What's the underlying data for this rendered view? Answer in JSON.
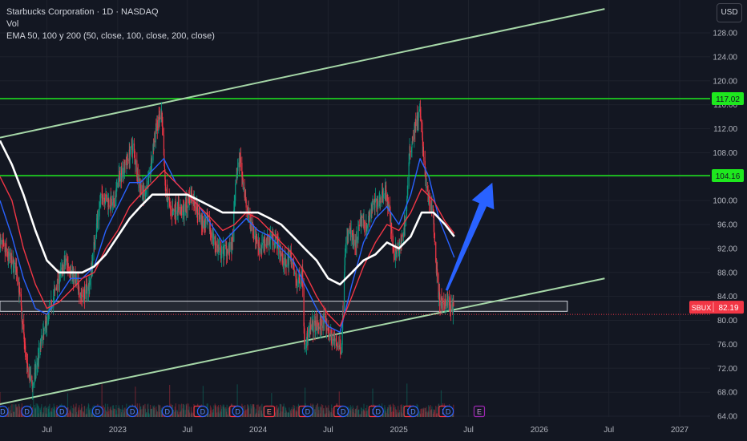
{
  "header": {
    "title": "Starbucks Corporation · 1D · NASDAQ",
    "vol_label": "Vol",
    "ema_label": "EMA 50, 100 y 200 (50, close, 100, close, 200, close)"
  },
  "currency_button": "USD",
  "chart_data": {
    "type": "candlestick",
    "symbol": "SBUX",
    "last_price": "82.19",
    "x_tick_labels": [
      "Jul",
      "2023",
      "Jul",
      "2024",
      "Jul",
      "2025",
      "Jul",
      "2026",
      "Jul",
      "2027"
    ],
    "y_tick_labels": [
      "64.00",
      "68.00",
      "72.00",
      "76.00",
      "80.00",
      "84.00",
      "88.00",
      "92.00",
      "96.00",
      "100.00",
      "104.00",
      "108.00",
      "112.00",
      "116.00",
      "120.00",
      "124.00",
      "128.00"
    ],
    "ylim": [
      62,
      132
    ],
    "horizontal_levels": [
      {
        "value": 117.02,
        "label": "117.02",
        "color": "#1ee81e"
      },
      {
        "value": 104.16,
        "label": "104.16",
        "color": "#1ee81e"
      }
    ],
    "channel": {
      "upper": {
        "from": {
          "date": "2022-03-01",
          "price": 110.5
        },
        "to": {
          "date": "2026-06-20",
          "price": 132.0
        }
      },
      "lower": {
        "from": {
          "date": "2022-03-01",
          "price": 66.0
        },
        "to": {
          "date": "2026-06-20",
          "price": 87.0
        }
      },
      "color": "#a5d6a7"
    },
    "support_zone": {
      "from": {
        "date": "2022-03-01",
        "price": 83.2
      },
      "to": {
        "date": "2026-03-15",
        "price": 81.5
      }
    },
    "projection_arrow": {
      "from": {
        "date": "2025-05-05",
        "price": 85.0
      },
      "to": {
        "date": "2025-09-01",
        "price": 103.0
      },
      "color": "#2962ff"
    },
    "price_path": [
      [
        "2022-03-01",
        93
      ],
      [
        "2022-04-15",
        88
      ],
      [
        "2022-05-10",
        72
      ],
      [
        "2022-05-25",
        69
      ],
      [
        "2022-06-15",
        76
      ],
      [
        "2022-07-10",
        82
      ],
      [
        "2022-08-01",
        87
      ],
      [
        "2022-08-20",
        90
      ],
      [
        "2022-09-10",
        87
      ],
      [
        "2022-10-01",
        84
      ],
      [
        "2022-10-20",
        86
      ],
      [
        "2022-11-05",
        95
      ],
      [
        "2022-11-20",
        101
      ],
      [
        "2022-12-05",
        100
      ],
      [
        "2022-12-20",
        99
      ],
      [
        "2023-01-05",
        104
      ],
      [
        "2023-01-20",
        106
      ],
      [
        "2023-02-10",
        109
      ],
      [
        "2023-02-25",
        103
      ],
      [
        "2023-03-10",
        101
      ],
      [
        "2023-03-25",
        104
      ],
      [
        "2023-04-10",
        112
      ],
      [
        "2023-04-25",
        114
      ],
      [
        "2023-05-05",
        102
      ],
      [
        "2023-05-20",
        98
      ],
      [
        "2023-06-05",
        99
      ],
      [
        "2023-06-20",
        98
      ],
      [
        "2023-07-10",
        101
      ],
      [
        "2023-07-25",
        99
      ],
      [
        "2023-08-10",
        96
      ],
      [
        "2023-08-25",
        96
      ],
      [
        "2023-09-10",
        93
      ],
      [
        "2023-09-25",
        91
      ],
      [
        "2023-10-10",
        92
      ],
      [
        "2023-10-25",
        92
      ],
      [
        "2023-11-05",
        104
      ],
      [
        "2023-11-15",
        107
      ],
      [
        "2023-12-01",
        99
      ],
      [
        "2023-12-20",
        95
      ],
      [
        "2024-01-05",
        92
      ],
      [
        "2024-01-20",
        93
      ],
      [
        "2024-02-05",
        94
      ],
      [
        "2024-02-20",
        93
      ],
      [
        "2024-03-10",
        89
      ],
      [
        "2024-03-25",
        91
      ],
      [
        "2024-04-10",
        86
      ],
      [
        "2024-04-25",
        88
      ],
      [
        "2024-05-01",
        76
      ],
      [
        "2024-05-20",
        79
      ],
      [
        "2024-06-05",
        79
      ],
      [
        "2024-06-20",
        80
      ],
      [
        "2024-07-10",
        77
      ],
      [
        "2024-07-25",
        76
      ],
      [
        "2024-08-05",
        75
      ],
      [
        "2024-08-14",
        92
      ],
      [
        "2024-08-25",
        95
      ],
      [
        "2024-09-10",
        92
      ],
      [
        "2024-09-25",
        97
      ],
      [
        "2024-10-10",
        96
      ],
      [
        "2024-10-25",
        99
      ],
      [
        "2024-11-10",
        100
      ],
      [
        "2024-11-25",
        102
      ],
      [
        "2024-12-05",
        99
      ],
      [
        "2024-12-20",
        91
      ],
      [
        "2025-01-05",
        92
      ],
      [
        "2025-01-20",
        98
      ],
      [
        "2025-01-29",
        108
      ],
      [
        "2025-02-10",
        112
      ],
      [
        "2025-02-25",
        115
      ],
      [
        "2025-03-05",
        108
      ],
      [
        "2025-03-15",
        101
      ],
      [
        "2025-03-31",
        98
      ],
      [
        "2025-04-08",
        89
      ],
      [
        "2025-04-15",
        84
      ],
      [
        "2025-04-25",
        82
      ],
      [
        "2025-05-05",
        84
      ],
      [
        "2025-05-15",
        82
      ],
      [
        "2025-05-25",
        82.19
      ]
    ],
    "ema_series": [
      {
        "name": "EMA 50",
        "color": "#2962ff",
        "values": [
          [
            "2022-03-01",
            100
          ],
          [
            "2022-04-01",
            94
          ],
          [
            "2022-05-01",
            87
          ],
          [
            "2022-06-01",
            82
          ],
          [
            "2022-07-01",
            81
          ],
          [
            "2022-08-01",
            84
          ],
          [
            "2022-09-01",
            87
          ],
          [
            "2022-10-01",
            87
          ],
          [
            "2022-11-01",
            89
          ],
          [
            "2022-12-01",
            95
          ],
          [
            "2023-01-01",
            99
          ],
          [
            "2023-02-01",
            103
          ],
          [
            "2023-03-01",
            103
          ],
          [
            "2023-04-01",
            105
          ],
          [
            "2023-05-01",
            107
          ],
          [
            "2023-06-01",
            103
          ],
          [
            "2023-07-01",
            101
          ],
          [
            "2023-08-01",
            99
          ],
          [
            "2023-09-01",
            96
          ],
          [
            "2023-10-01",
            93
          ],
          [
            "2023-11-01",
            95
          ],
          [
            "2023-12-01",
            97
          ],
          [
            "2024-01-01",
            95
          ],
          [
            "2024-02-01",
            94
          ],
          [
            "2024-03-01",
            92
          ],
          [
            "2024-04-01",
            90
          ],
          [
            "2024-05-01",
            86
          ],
          [
            "2024-06-01",
            82
          ],
          [
            "2024-07-01",
            79
          ],
          [
            "2024-08-01",
            78
          ],
          [
            "2024-09-01",
            86
          ],
          [
            "2024-10-01",
            93
          ],
          [
            "2024-11-01",
            97
          ],
          [
            "2024-12-01",
            99
          ],
          [
            "2025-01-01",
            96
          ],
          [
            "2025-02-01",
            101
          ],
          [
            "2025-02-25",
            107
          ],
          [
            "2025-03-20",
            104
          ],
          [
            "2025-04-15",
            97
          ],
          [
            "2025-05-25",
            90.5
          ]
        ]
      },
      {
        "name": "EMA 100",
        "color": "#f23645",
        "values": [
          [
            "2022-03-01",
            104
          ],
          [
            "2022-04-01",
            100
          ],
          [
            "2022-05-01",
            92
          ],
          [
            "2022-06-01",
            86
          ],
          [
            "2022-07-01",
            82
          ],
          [
            "2022-08-01",
            83
          ],
          [
            "2022-09-01",
            85
          ],
          [
            "2022-10-01",
            87
          ],
          [
            "2022-11-01",
            88
          ],
          [
            "2022-12-01",
            92
          ],
          [
            "2023-01-01",
            95
          ],
          [
            "2023-02-01",
            99
          ],
          [
            "2023-03-01",
            101
          ],
          [
            "2023-04-01",
            103
          ],
          [
            "2023-05-01",
            105
          ],
          [
            "2023-06-01",
            103
          ],
          [
            "2023-07-01",
            101
          ],
          [
            "2023-08-01",
            99
          ],
          [
            "2023-09-01",
            97
          ],
          [
            "2023-10-01",
            95
          ],
          [
            "2023-11-01",
            96
          ],
          [
            "2023-12-01",
            98
          ],
          [
            "2024-01-01",
            97
          ],
          [
            "2024-02-01",
            95
          ],
          [
            "2024-03-01",
            93
          ],
          [
            "2024-04-01",
            91
          ],
          [
            "2024-05-01",
            88
          ],
          [
            "2024-06-01",
            84
          ],
          [
            "2024-07-01",
            81
          ],
          [
            "2024-08-01",
            79
          ],
          [
            "2024-09-01",
            84
          ],
          [
            "2024-10-01",
            89
          ],
          [
            "2024-11-01",
            93
          ],
          [
            "2024-12-01",
            96
          ],
          [
            "2025-01-01",
            95
          ],
          [
            "2025-02-01",
            98
          ],
          [
            "2025-03-01",
            102
          ],
          [
            "2025-04-01",
            100
          ],
          [
            "2025-05-01",
            96.5
          ],
          [
            "2025-05-25",
            94.5
          ]
        ]
      },
      {
        "name": "EMA 200",
        "color": "#ffffff",
        "values": [
          [
            "2022-03-01",
            110
          ],
          [
            "2022-04-01",
            106
          ],
          [
            "2022-05-01",
            101
          ],
          [
            "2022-06-01",
            95
          ],
          [
            "2022-07-01",
            90
          ],
          [
            "2022-08-01",
            88
          ],
          [
            "2022-09-01",
            88
          ],
          [
            "2022-10-01",
            88
          ],
          [
            "2022-11-01",
            89
          ],
          [
            "2022-12-01",
            91
          ],
          [
            "2023-01-01",
            94
          ],
          [
            "2023-02-01",
            97
          ],
          [
            "2023-03-01",
            99
          ],
          [
            "2023-04-01",
            101
          ],
          [
            "2023-05-01",
            101
          ],
          [
            "2023-06-01",
            101
          ],
          [
            "2023-07-01",
            101
          ],
          [
            "2023-08-01",
            100
          ],
          [
            "2023-09-01",
            99
          ],
          [
            "2023-10-01",
            98
          ],
          [
            "2023-11-01",
            98
          ],
          [
            "2023-12-01",
            98
          ],
          [
            "2024-01-01",
            98
          ],
          [
            "2024-02-01",
            97
          ],
          [
            "2024-03-01",
            96
          ],
          [
            "2024-04-01",
            94
          ],
          [
            "2024-05-01",
            92
          ],
          [
            "2024-06-01",
            90
          ],
          [
            "2024-07-01",
            87
          ],
          [
            "2024-08-01",
            86
          ],
          [
            "2024-09-01",
            88
          ],
          [
            "2024-10-01",
            90
          ],
          [
            "2024-11-01",
            91
          ],
          [
            "2024-12-01",
            93
          ],
          [
            "2025-01-01",
            92
          ],
          [
            "2025-02-01",
            94
          ],
          [
            "2025-03-01",
            98
          ],
          [
            "2025-04-01",
            98
          ],
          [
            "2025-05-01",
            96
          ],
          [
            "2025-05-25",
            94
          ]
        ]
      }
    ],
    "events": [
      {
        "date": "2022-03-08",
        "kind": "D"
      },
      {
        "date": "2022-05-10",
        "kind": "D"
      },
      {
        "date": "2022-08-09",
        "kind": "D"
      },
      {
        "date": "2022-11-10",
        "kind": "D"
      },
      {
        "date": "2023-02-08",
        "kind": "D"
      },
      {
        "date": "2023-05-10",
        "kind": "D"
      },
      {
        "date": "2023-08-01",
        "kind": "E"
      },
      {
        "date": "2023-08-10",
        "kind": "D"
      },
      {
        "date": "2023-11-02",
        "kind": "E"
      },
      {
        "date": "2023-11-09",
        "kind": "D"
      },
      {
        "date": "2024-01-30",
        "kind": "E"
      },
      {
        "date": "2024-04-30",
        "kind": "E"
      },
      {
        "date": "2024-05-09",
        "kind": "D"
      },
      {
        "date": "2024-07-30",
        "kind": "E"
      },
      {
        "date": "2024-08-09",
        "kind": "D"
      },
      {
        "date": "2024-10-29",
        "kind": "E"
      },
      {
        "date": "2024-11-08",
        "kind": "D"
      },
      {
        "date": "2025-01-28",
        "kind": "E"
      },
      {
        "date": "2025-02-07",
        "kind": "D"
      },
      {
        "date": "2025-04-29",
        "kind": "E"
      },
      {
        "date": "2025-05-09",
        "kind": "D"
      },
      {
        "date": "2025-07-29",
        "kind": "E",
        "upcoming": true
      }
    ],
    "grid": true
  }
}
